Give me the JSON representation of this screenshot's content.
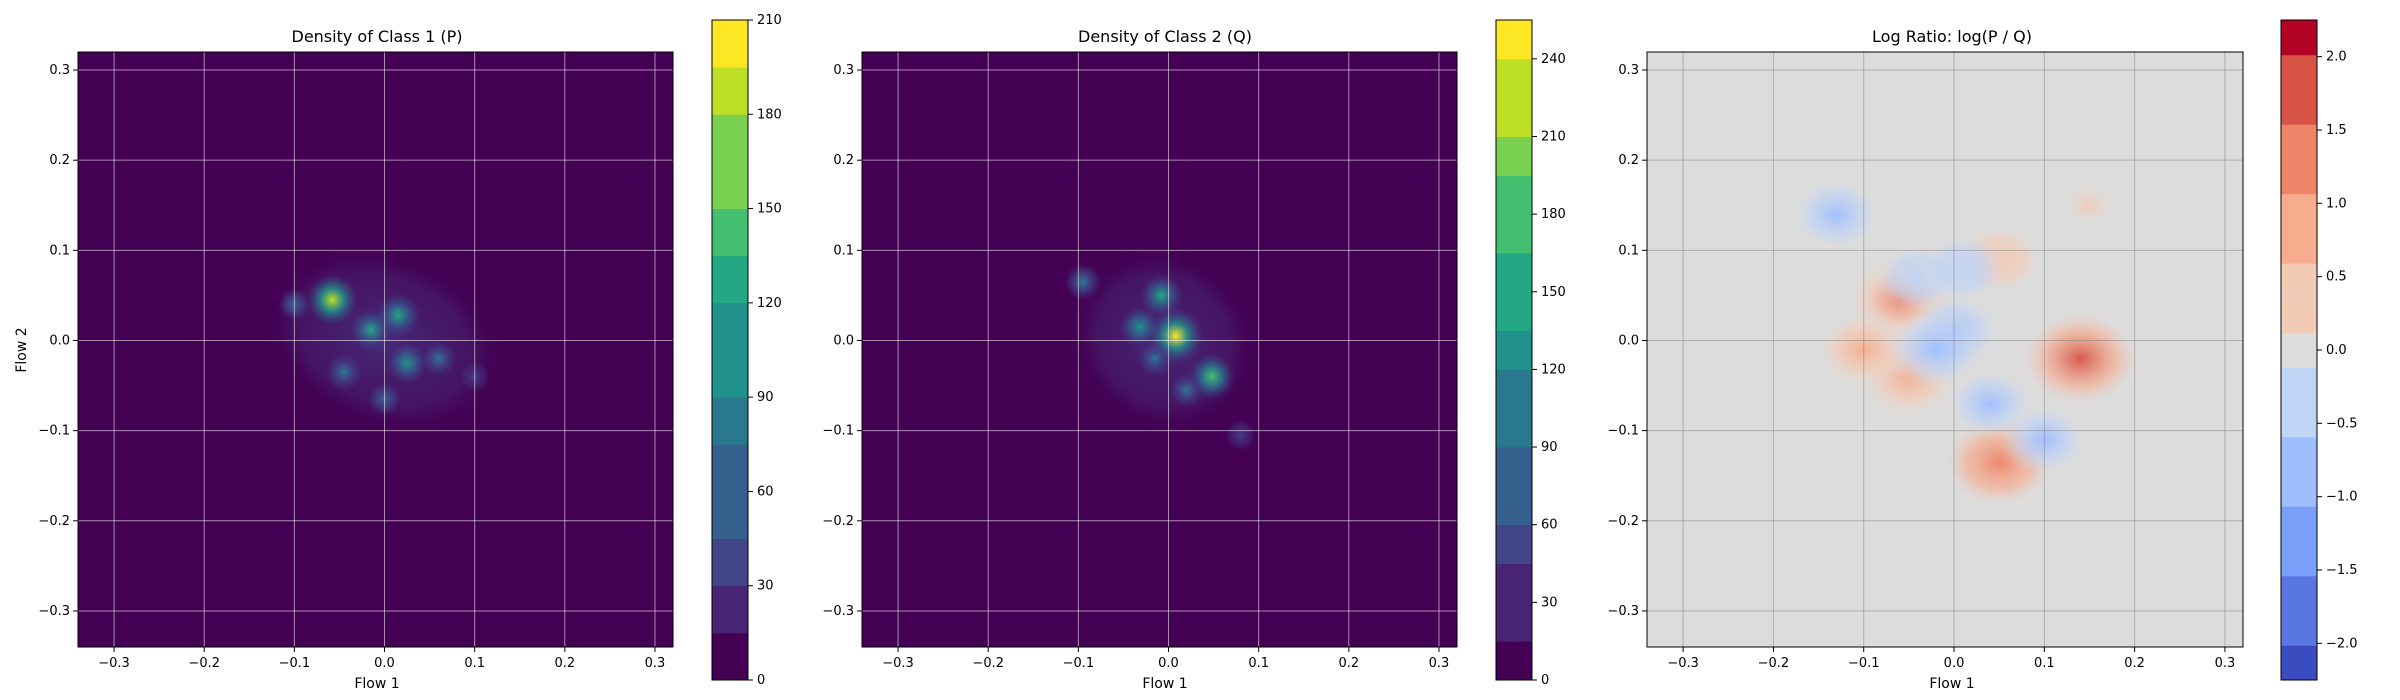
{
  "chart_data": [
    {
      "type": "heatmap",
      "title": "Density of Class 1 (P)",
      "xlabel": "Flow 1",
      "ylabel": "Flow 2",
      "xlim": [
        -0.34,
        0.32
      ],
      "ylim": [
        -0.34,
        0.32
      ],
      "xticks": [
        -0.3,
        -0.2,
        -0.1,
        0.0,
        0.1,
        0.2,
        0.3
      ],
      "yticks": [
        -0.3,
        -0.2,
        -0.1,
        0.0,
        0.1,
        0.2,
        0.3
      ],
      "grid": true,
      "colormap": "viridis",
      "colorbar": {
        "min": 0,
        "max": 210,
        "ticks": [
          0,
          30,
          60,
          90,
          120,
          150,
          180,
          210
        ]
      },
      "background_color": "#440154",
      "hotspots": [
        {
          "x": -0.058,
          "y": 0.045,
          "level": 0.85
        },
        {
          "x": 0.015,
          "y": 0.028,
          "level": 0.62
        },
        {
          "x": -0.015,
          "y": 0.012,
          "level": 0.55
        },
        {
          "x": 0.025,
          "y": -0.025,
          "level": 0.5
        },
        {
          "x": -0.045,
          "y": -0.035,
          "level": 0.42
        },
        {
          "x": 0.06,
          "y": -0.02,
          "level": 0.35
        },
        {
          "x": -0.1,
          "y": 0.04,
          "level": 0.28
        },
        {
          "x": 0.0,
          "y": -0.065,
          "level": 0.28
        },
        {
          "x": 0.1,
          "y": -0.04,
          "level": 0.2
        }
      ]
    },
    {
      "type": "heatmap",
      "title": "Density of Class 2 (Q)",
      "xlabel": "Flow 1",
      "ylabel": "",
      "xlim": [
        -0.34,
        0.32
      ],
      "ylim": [
        -0.34,
        0.32
      ],
      "xticks": [
        -0.3,
        -0.2,
        -0.1,
        0.0,
        0.1,
        0.2,
        0.3
      ],
      "yticks": [
        -0.3,
        -0.2,
        -0.1,
        0.0,
        0.1,
        0.2,
        0.3
      ],
      "grid": true,
      "colormap": "viridis",
      "colorbar": {
        "min": 0,
        "max": 255,
        "ticks": [
          0,
          30,
          60,
          90,
          120,
          150,
          180,
          210,
          240
        ]
      },
      "background_color": "#440154",
      "hotspots": [
        {
          "x": 0.008,
          "y": 0.005,
          "level": 0.95
        },
        {
          "x": 0.048,
          "y": -0.04,
          "level": 0.7
        },
        {
          "x": -0.008,
          "y": 0.05,
          "level": 0.6
        },
        {
          "x": -0.032,
          "y": 0.015,
          "level": 0.5
        },
        {
          "x": -0.095,
          "y": 0.065,
          "level": 0.42
        },
        {
          "x": 0.02,
          "y": -0.055,
          "level": 0.35
        },
        {
          "x": -0.015,
          "y": -0.02,
          "level": 0.35
        },
        {
          "x": 0.08,
          "y": -0.105,
          "level": 0.22
        }
      ]
    },
    {
      "type": "heatmap",
      "title": "Log Ratio: log(P / Q)",
      "xlabel": "Flow 1",
      "ylabel": "",
      "xlim": [
        -0.34,
        0.32
      ],
      "ylim": [
        -0.34,
        0.32
      ],
      "xticks": [
        -0.3,
        -0.2,
        -0.1,
        0.0,
        0.1,
        0.2,
        0.3
      ],
      "yticks": [
        -0.3,
        -0.2,
        -0.1,
        0.0,
        0.1,
        0.2,
        0.3
      ],
      "grid": true,
      "colormap": "coolwarm",
      "colorbar": {
        "min": -2.25,
        "max": 2.25,
        "ticks": [
          -2.0,
          -1.5,
          -1.0,
          -0.5,
          0.0,
          0.5,
          1.0,
          1.5,
          2.0
        ]
      },
      "background_color": "#dddcdc",
      "positive_regions": [
        {
          "x": 0.14,
          "y": -0.02,
          "level": 1.6
        },
        {
          "x": 0.05,
          "y": -0.135,
          "level": 1.4
        },
        {
          "x": -0.06,
          "y": 0.045,
          "level": 1.3
        },
        {
          "x": -0.05,
          "y": -0.04,
          "level": 1.1
        },
        {
          "x": -0.1,
          "y": -0.01,
          "level": 0.9
        },
        {
          "x": 0.05,
          "y": 0.09,
          "level": 0.6
        },
        {
          "x": 0.15,
          "y": 0.15,
          "level": 0.4
        }
      ],
      "negative_regions": [
        {
          "x": -0.13,
          "y": 0.14,
          "level": -0.8
        },
        {
          "x": -0.04,
          "y": 0.07,
          "level": -0.6
        },
        {
          "x": 0.0,
          "y": 0.01,
          "level": -0.9
        },
        {
          "x": 0.04,
          "y": -0.07,
          "level": -0.7
        },
        {
          "x": 0.1,
          "y": -0.11,
          "level": -0.7
        },
        {
          "x": 0.01,
          "y": 0.08,
          "level": -0.6
        },
        {
          "x": -0.02,
          "y": -0.01,
          "level": -1.0
        }
      ]
    }
  ]
}
